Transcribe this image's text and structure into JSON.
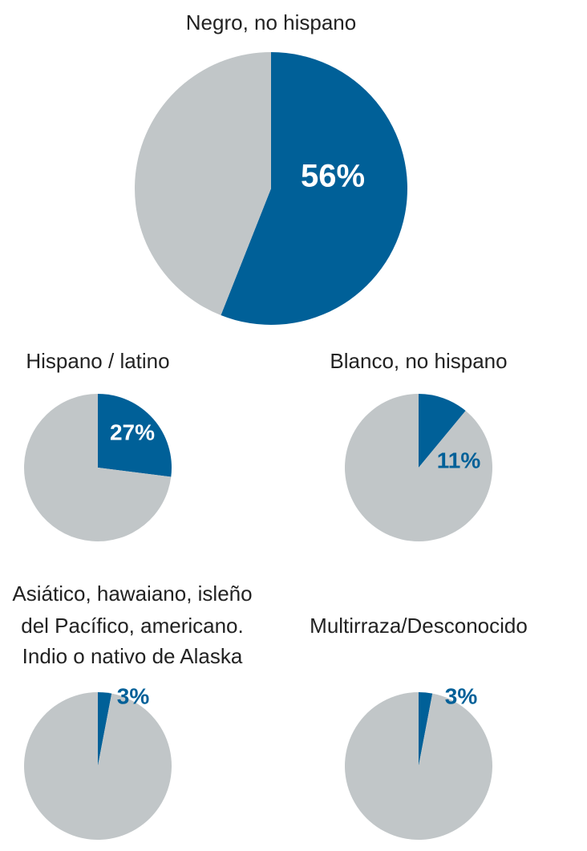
{
  "chart_data": [
    {
      "type": "pie",
      "title": [
        "Negro, no hispano"
      ],
      "values": [
        56,
        44
      ],
      "value_labels": [
        "56%",
        null
      ],
      "colors": [
        "#006098",
        "#c1c6c8"
      ]
    },
    {
      "type": "pie",
      "title": [
        "Hispano / latino"
      ],
      "values": [
        27,
        73
      ],
      "value_labels": [
        "27%",
        null
      ],
      "colors": [
        "#006098",
        "#c1c6c8"
      ]
    },
    {
      "type": "pie",
      "title": [
        "Blanco, no hispano"
      ],
      "values": [
        11,
        89
      ],
      "value_labels": [
        "11%",
        null
      ],
      "colors": [
        "#006098",
        "#c1c6c8"
      ]
    },
    {
      "type": "pie",
      "title": [
        "Asiático, hawaiano, isleño",
        "del Pacífico, americano.",
        "Indio o nativo de Alaska"
      ],
      "values": [
        3,
        97
      ],
      "value_labels": [
        "3%",
        null
      ],
      "colors": [
        "#006098",
        "#c1c6c8"
      ]
    },
    {
      "type": "pie",
      "title": [
        "Multirraza/Desconocido"
      ],
      "values": [
        3,
        97
      ],
      "value_labels": [
        "3%",
        null
      ],
      "colors": [
        "#006098",
        "#c1c6c8"
      ]
    }
  ]
}
